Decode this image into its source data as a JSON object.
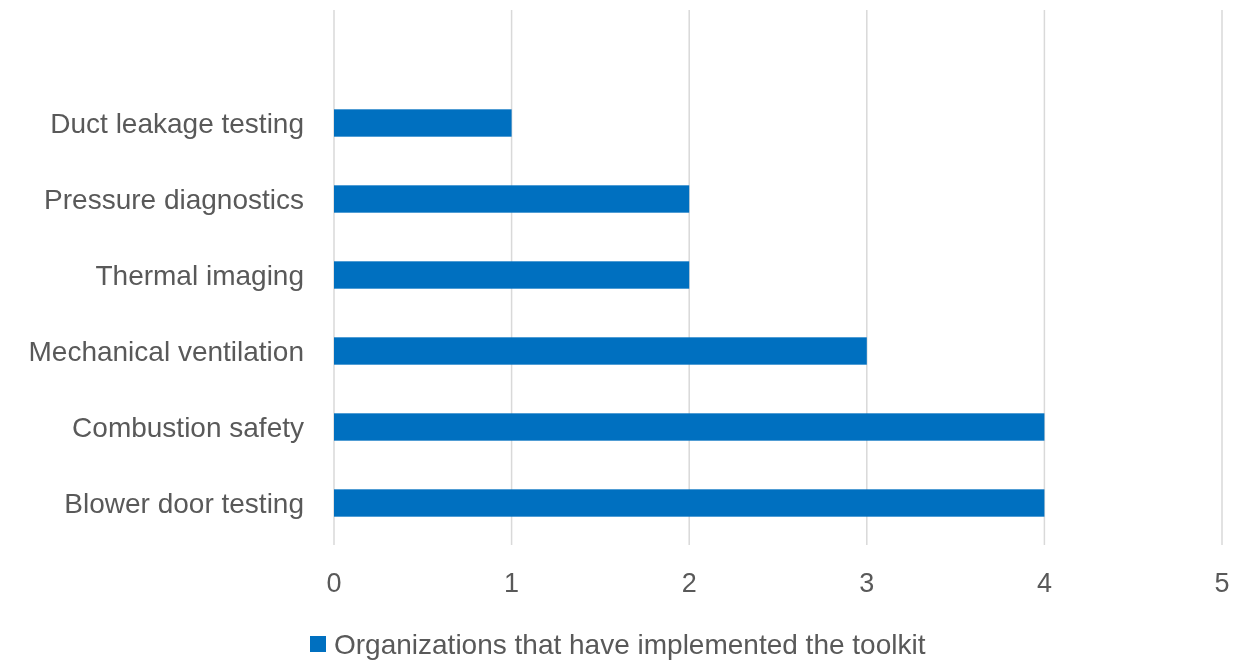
{
  "chart_data": {
    "type": "bar",
    "orientation": "horizontal",
    "categories": [
      "Duct leakage testing",
      "Pressure diagnostics",
      "Thermal imaging",
      "Mechanical ventilation",
      "Combustion safety",
      "Blower door testing"
    ],
    "series": [
      {
        "name": "Organizations that have implemented the toolkit",
        "color": "#0070c0",
        "values": [
          1,
          2,
          2,
          3,
          4,
          4
        ]
      }
    ],
    "xlim": [
      0,
      5
    ],
    "xticks": [
      0,
      1,
      2,
      3,
      4,
      5
    ],
    "grid": "x",
    "legend": "bottom"
  }
}
